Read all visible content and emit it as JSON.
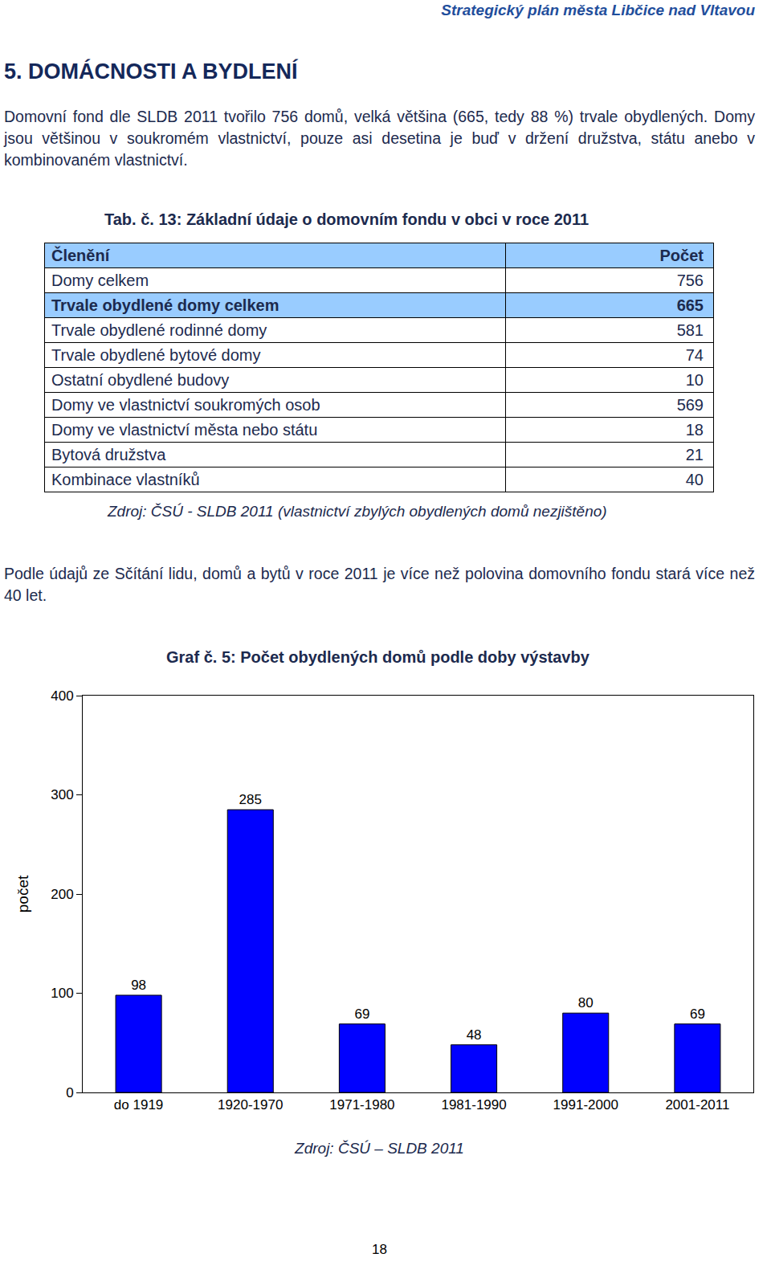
{
  "header": "Strategický plán města Libčice nad Vltavou",
  "section_title": "5. DOMÁCNOSTI A BYDLENÍ",
  "paragraph_1": "Domovní fond dle SLDB 2011 tvořilo 756 domů, velká většina (665, tedy 88 %) trvale obydlených. Domy jsou většinou v soukromém vlastnictví, pouze asi desetina je buď v držení družstva, státu anebo v kombinovaném vlastnictví.",
  "table": {
    "caption": "Tab. č. 13: Základní údaje o domovním fondu v obci v roce 2011",
    "columns": [
      "Členění",
      "Počet"
    ],
    "rows": [
      [
        "Domy celkem",
        756
      ],
      [
        "Trvale obydlené domy celkem",
        665
      ],
      [
        "Trvale obydlené rodinné domy",
        581
      ],
      [
        "Trvale obydlené bytové domy",
        74
      ],
      [
        "Ostatní obydlené budovy",
        10
      ],
      [
        "Domy ve vlastnictví soukromých osob",
        569
      ],
      [
        "Domy ve vlastnictví města nebo státu",
        18
      ],
      [
        "Bytová družstva",
        21
      ],
      [
        "Kombinace vlastníků",
        40
      ]
    ],
    "source": "Zdroj: ČSÚ - SLDB 2011 (vlastnictví zbylých obydlených domů nezjištěno)"
  },
  "paragraph_2": "Podle údajů ze Sčítání lidu, domů a bytů v roce 2011 je více než polovina domovního fondu stará více než 40 let.",
  "chart_data": {
    "type": "bar",
    "title": "Graf č. 5: Počet obydlených domů podle doby výstavby",
    "y_label": "počet",
    "categories": [
      "do 1919",
      "1920-1970",
      "1971-1980",
      "1981-1990",
      "1991-2000",
      "2001-2011"
    ],
    "values": [
      98,
      285,
      69,
      48,
      80,
      69
    ],
    "color": "#0000ff",
    "ylim": [
      0,
      400
    ],
    "yticks": [
      0,
      100,
      200,
      300,
      400
    ],
    "grid": false,
    "data_labels": true,
    "source": "Zdroj: ČSÚ – SLDB 2011"
  },
  "page_number": 18
}
